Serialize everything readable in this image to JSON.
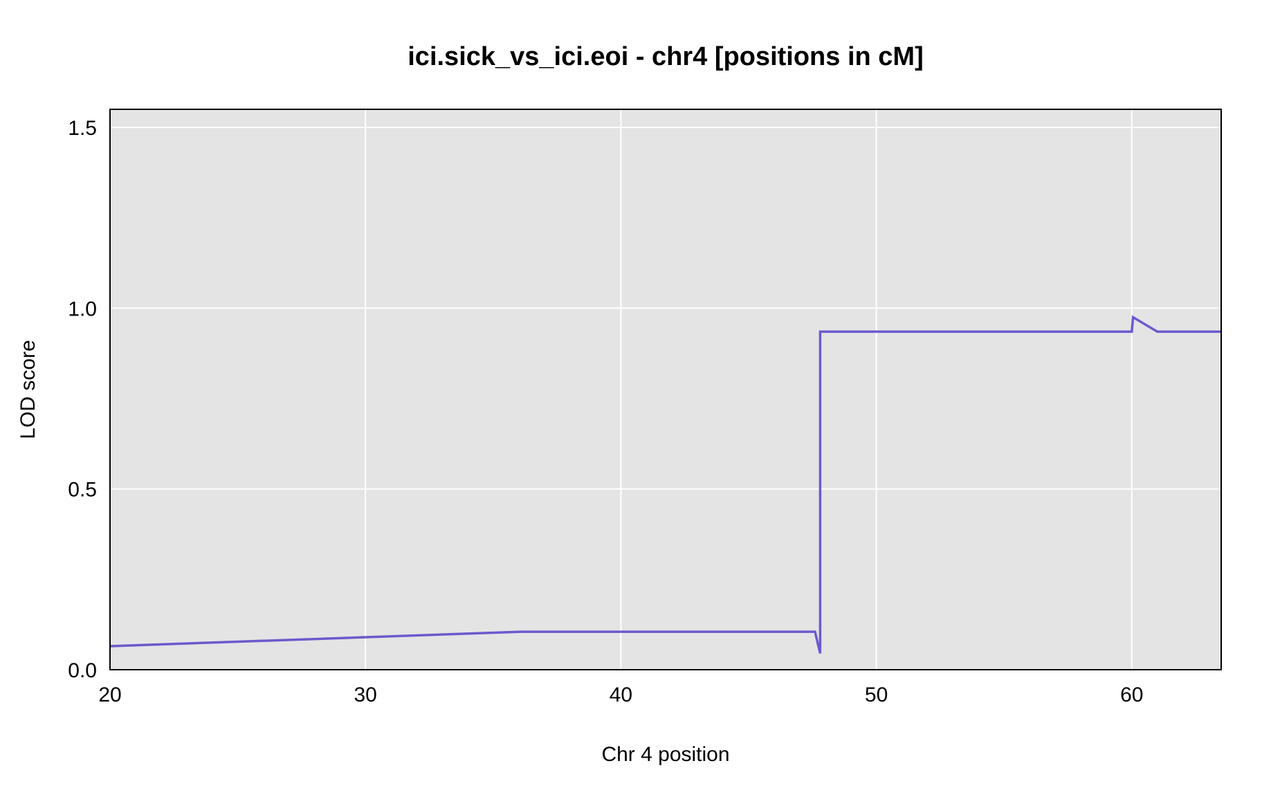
{
  "chart_data": {
    "type": "line",
    "title": "ici.sick_vs_ici.eoi - chr4 [positions in cM]",
    "xlabel": "Chr 4 position",
    "ylabel": "LOD score",
    "xlim": [
      20,
      63.5
    ],
    "ylim": [
      0,
      1.55
    ],
    "xticks": [
      20,
      30,
      40,
      50,
      60
    ],
    "yticks": [
      0.0,
      0.5,
      1.0,
      1.5
    ],
    "xtick_labels": [
      "20",
      "30",
      "40",
      "50",
      "60"
    ],
    "ytick_labels": [
      "0.0",
      "0.5",
      "1.0",
      "1.5"
    ],
    "grid": true,
    "colors": {
      "panel_background": "#e4e4e4",
      "grid": "#ffffff",
      "series": "#6a5acd",
      "baseline": "#2a2aa0",
      "frame": "#000000"
    },
    "series": [
      {
        "name": "ici.sick_vs_ici.eoi",
        "x": [
          20.0,
          36.1,
          47.6,
          47.8,
          47.8,
          60.0,
          60.05,
          61.0,
          63.5
        ],
        "y": [
          0.065,
          0.105,
          0.105,
          0.045,
          0.935,
          0.935,
          0.975,
          0.935,
          0.935
        ]
      }
    ]
  }
}
